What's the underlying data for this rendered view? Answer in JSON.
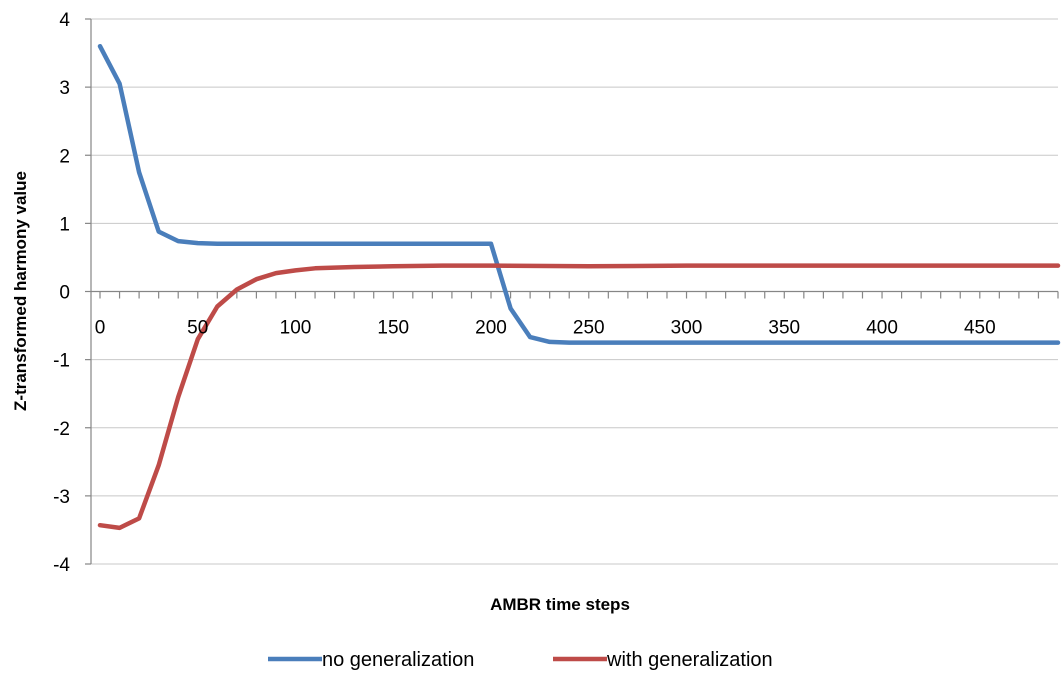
{
  "chart_data": {
    "type": "line",
    "title": "",
    "xlabel": "AMBR time steps",
    "ylabel": "Z-transformed harmony value",
    "xlim": [
      0,
      490
    ],
    "ylim": [
      -4,
      4
    ],
    "x_ticks": [
      0,
      50,
      100,
      150,
      200,
      250,
      300,
      350,
      400,
      450
    ],
    "y_ticks": [
      4,
      3,
      2,
      1,
      0,
      -1,
      -2,
      -3,
      -4
    ],
    "x_tick_labels": [
      "0",
      "50",
      "100",
      "150",
      "200",
      "250",
      "300",
      "350",
      "400",
      "450"
    ],
    "y_tick_labels": [
      "4",
      "3",
      "2",
      "1",
      "0",
      "-1",
      "-2",
      "-3",
      "-4"
    ],
    "grid": {
      "horizontal": true,
      "vertical": false
    },
    "legend_position": "bottom",
    "series": [
      {
        "name": "no generalization",
        "color": "#4a7ebb",
        "points": [
          [
            0,
            3.6
          ],
          [
            10,
            3.05
          ],
          [
            20,
            1.75
          ],
          [
            30,
            0.88
          ],
          [
            40,
            0.74
          ],
          [
            50,
            0.71
          ],
          [
            60,
            0.7
          ],
          [
            100,
            0.7
          ],
          [
            150,
            0.7
          ],
          [
            200,
            0.7
          ],
          [
            210,
            -0.25
          ],
          [
            220,
            -0.67
          ],
          [
            230,
            -0.74
          ],
          [
            240,
            -0.75
          ],
          [
            300,
            -0.75
          ],
          [
            400,
            -0.75
          ],
          [
            490,
            -0.75
          ]
        ]
      },
      {
        "name": "with generalization",
        "color": "#be4b48",
        "points": [
          [
            0,
            -3.43
          ],
          [
            10,
            -3.47
          ],
          [
            20,
            -3.33
          ],
          [
            30,
            -2.55
          ],
          [
            40,
            -1.55
          ],
          [
            50,
            -0.7
          ],
          [
            60,
            -0.22
          ],
          [
            70,
            0.03
          ],
          [
            80,
            0.18
          ],
          [
            90,
            0.27
          ],
          [
            100,
            0.31
          ],
          [
            110,
            0.34
          ],
          [
            130,
            0.36
          ],
          [
            150,
            0.37
          ],
          [
            175,
            0.38
          ],
          [
            200,
            0.38
          ],
          [
            250,
            0.37
          ],
          [
            300,
            0.38
          ],
          [
            400,
            0.38
          ],
          [
            490,
            0.38
          ]
        ]
      }
    ]
  }
}
